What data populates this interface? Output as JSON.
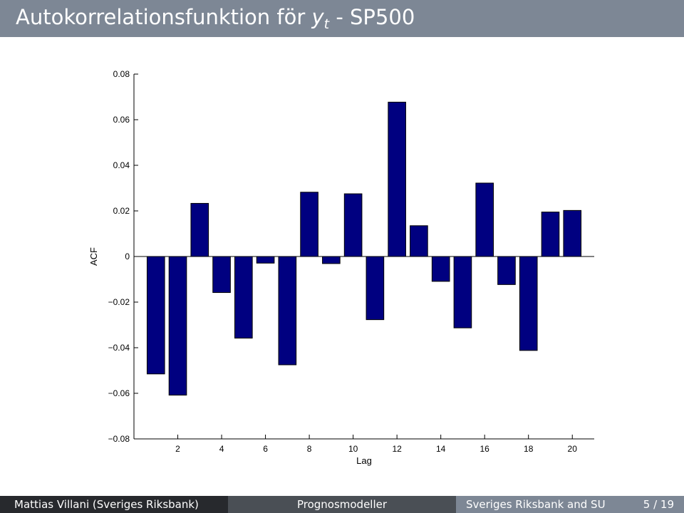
{
  "slide": {
    "title_main": "Autokorrelationsfunktion för ",
    "title_var": "y",
    "title_sub": "t",
    "title_tail": " - SP500"
  },
  "footer": {
    "author": "Mattias Villani  (Sveriges Riksbank)",
    "course": "Prognosmodeller",
    "institution": "Sveriges Riksbank and SU",
    "page": "5 / 19"
  },
  "colors": {
    "bar_fill": "#000080",
    "bar_stroke": "#000000",
    "title_bar": "#7d8795"
  },
  "chart_data": {
    "type": "bar",
    "xlabel": "Lag",
    "ylabel": "ACF",
    "ylim": [
      -0.08,
      0.08
    ],
    "xlim": [
      0,
      21
    ],
    "x": [
      1,
      2,
      3,
      4,
      5,
      6,
      7,
      8,
      9,
      10,
      11,
      12,
      13,
      14,
      15,
      16,
      17,
      18,
      19,
      20
    ],
    "values": [
      -0.0515,
      -0.0608,
      0.0233,
      -0.0158,
      -0.0358,
      -0.0029,
      -0.0475,
      0.0282,
      -0.0031,
      0.0275,
      -0.0277,
      0.0677,
      0.0135,
      -0.0109,
      -0.0313,
      0.0322,
      -0.0123,
      -0.0412,
      0.0195,
      0.0202
    ],
    "xticks": [
      2,
      4,
      6,
      8,
      10,
      12,
      14,
      16,
      18,
      20
    ],
    "yticks": [
      -0.08,
      -0.06,
      -0.04,
      -0.02,
      0,
      0.02,
      0.04,
      0.06,
      0.08
    ],
    "ytick_labels": [
      "−0.08",
      "−0.06",
      "−0.04",
      "−0.02",
      "0",
      "0.02",
      "0.04",
      "0.06",
      "0.08"
    ],
    "grid": false
  }
}
